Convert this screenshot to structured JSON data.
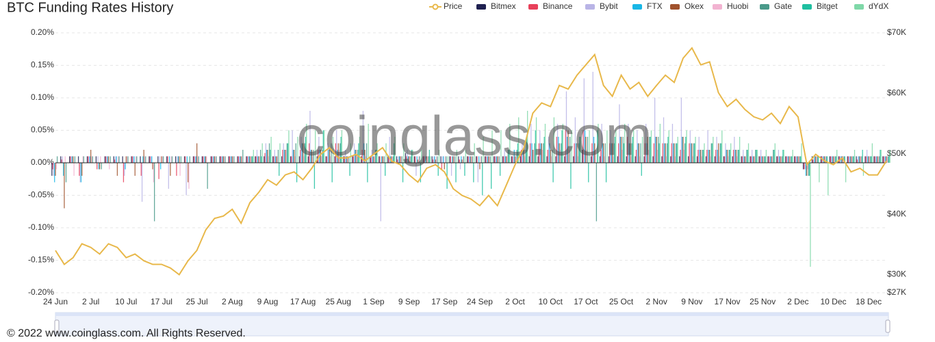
{
  "chart_data": {
    "type": "bar",
    "title": "BTC Funding Rates History",
    "watermark": "coinglass.com",
    "footer": "© 2022 www.coinglass.com. All Rights Reserved.",
    "categories": [
      "24 Jun",
      null,
      null,
      null,
      "2 Jul",
      null,
      null,
      null,
      "10 Jul",
      null,
      null,
      null,
      "17 Jul",
      null,
      null,
      null,
      "25 Jul",
      null,
      null,
      null,
      "2 Aug",
      null,
      null,
      null,
      "9 Aug",
      null,
      null,
      null,
      "17 Aug",
      null,
      null,
      null,
      "25 Aug",
      null,
      null,
      null,
      "1 Sep",
      null,
      null,
      null,
      "9 Sep",
      null,
      null,
      null,
      "17 Sep",
      null,
      null,
      null,
      "24 Sep",
      null,
      null,
      null,
      "2 Oct",
      null,
      null,
      null,
      "10 Oct",
      null,
      null,
      null,
      "17 Oct",
      null,
      null,
      null,
      "25 Oct",
      null,
      null,
      null,
      "2 Nov",
      null,
      null,
      null,
      "9 Nov",
      null,
      null,
      null,
      "17 Nov",
      null,
      null,
      null,
      "25 Nov",
      null,
      null,
      null,
      "2 Dec",
      null,
      null,
      null,
      "10 Dec",
      null,
      null,
      null,
      "18 Dec",
      null,
      null
    ],
    "ylim": [
      -0.2,
      0.2
    ],
    "yticks": [
      {
        "value": -0.2,
        "label": "-0.20%"
      },
      {
        "value": -0.15,
        "label": "-0.15%"
      },
      {
        "value": -0.1,
        "label": "-0.10%"
      },
      {
        "value": -0.05,
        "label": "-0.05%"
      },
      {
        "value": 0,
        "label": "0.00%"
      },
      {
        "value": 0.05,
        "label": "0.05%"
      },
      {
        "value": 0.1,
        "label": "0.10%"
      },
      {
        "value": 0.15,
        "label": "0.15%"
      },
      {
        "value": 0.2,
        "label": "0.20%"
      }
    ],
    "y2lim": [
      27000,
      70000
    ],
    "y2ticks": [
      {
        "value": 27000,
        "label": "$27K"
      },
      {
        "value": 30000,
        "label": "$30K"
      },
      {
        "value": 40000,
        "label": "$40K"
      },
      {
        "value": 50000,
        "label": "$50K"
      },
      {
        "value": 60000,
        "label": "$60K"
      },
      {
        "value": 70000,
        "label": "$70K"
      }
    ],
    "grid": true,
    "legend": "top-right",
    "series": [
      {
        "name": "Price",
        "color": "#e8b84a",
        "axis": "y2",
        "values": [
          34000,
          31700,
          32800,
          35100,
          34500,
          33400,
          35100,
          34500,
          32800,
          33400,
          32300,
          31700,
          31700,
          31100,
          30000,
          32300,
          34000,
          37400,
          39300,
          39700,
          40800,
          38500,
          41900,
          43600,
          45700,
          44800,
          46500,
          47000,
          45700,
          47600,
          49900,
          51000,
          49300,
          49300,
          49900,
          48800,
          49900,
          51000,
          48800,
          48200,
          46500,
          45300,
          47600,
          48200,
          47000,
          44200,
          43100,
          42500,
          41400,
          43100,
          41400,
          44800,
          48200,
          51000,
          56700,
          58400,
          57800,
          61300,
          60700,
          63000,
          64700,
          66400,
          61300,
          59500,
          63000,
          60700,
          61800,
          59500,
          61300,
          63000,
          61800,
          65800,
          67500,
          64700,
          65200,
          60100,
          57800,
          59000,
          57300,
          56100,
          55600,
          56700,
          55000,
          57800,
          56100,
          48200,
          49900,
          48800,
          48200,
          49300,
          47000,
          47600,
          46500,
          46500,
          48800
        ]
      },
      {
        "name": "Bitmex",
        "color": "#1f2150",
        "values": [
          -0.02,
          0.01,
          0.01,
          0.01,
          0.01,
          0.01,
          0.01,
          0.01,
          0.01,
          0.01,
          0.01,
          0.01,
          0.01,
          0.01,
          0.01,
          0.01,
          0.01,
          0.01,
          0.01,
          0.01,
          0.01,
          0.01,
          0.01,
          0.01,
          0.01,
          0.01,
          0.01,
          0.01,
          0.01,
          0.01,
          0.01,
          0.01,
          0.01,
          0.01,
          0.01,
          0.01,
          0.01,
          0.01,
          0.01,
          0.01,
          0.015,
          0.01,
          0.01,
          0.01,
          0.01,
          0.01,
          0.01,
          0.01,
          0.01,
          0.01,
          0.01,
          0.01,
          0.01,
          0.01,
          0.01,
          0.01,
          0.01,
          0.01,
          0.01,
          0.01,
          0.02,
          0.01,
          0.01,
          0.01,
          0.01,
          0.01,
          0.01,
          0.01,
          0.01,
          0.01,
          0.01,
          0.01,
          0.01,
          0.01,
          0.01,
          0.01,
          0.01,
          0.01,
          0.01,
          0.01,
          0.01,
          0.01,
          0.01,
          0.01,
          0.01,
          -0.01,
          0.01,
          0.01,
          0.01,
          0.01,
          0.01,
          0.01,
          0.01,
          0.01,
          0.01
        ]
      },
      {
        "name": "Binance",
        "color": "#e8405a",
        "values": [
          -0.01,
          0.005,
          0.01,
          -0.02,
          0.01,
          -0.01,
          0.01,
          0.005,
          -0.03,
          0.01,
          -0.02,
          0.01,
          -0.025,
          0.01,
          -0.02,
          0.01,
          0.01,
          0.01,
          0.01,
          0.01,
          0.01,
          0.01,
          0.01,
          0.01,
          0.015,
          0.01,
          0.02,
          0.01,
          0.02,
          0.03,
          0.02,
          0.01,
          0.03,
          0.01,
          0.01,
          0.02,
          0.01,
          0.01,
          0.01,
          0.005,
          0.01,
          0.01,
          0.01,
          0.005,
          -0.01,
          0.01,
          0.005,
          0.01,
          0.01,
          0.01,
          0.01,
          0.01,
          0.01,
          0.02,
          0.03,
          0.03,
          0.02,
          0.04,
          0.05,
          0.03,
          0.05,
          0.03,
          0.02,
          0.03,
          0.03,
          0.04,
          0.02,
          0.03,
          0.03,
          0.03,
          0.03,
          0.02,
          0.03,
          0.02,
          0.02,
          0.02,
          0.01,
          0.02,
          0.01,
          0.01,
          0.01,
          0.01,
          0.01,
          0.01,
          0.01,
          -0.01,
          0.005,
          0.01,
          0.01,
          0.01,
          0.01,
          0.005,
          0.01,
          0.01,
          0.01
        ]
      },
      {
        "name": "Bybit",
        "color": "#b9b4e6",
        "values": [
          -0.02,
          0.01,
          0.01,
          -0.03,
          0.01,
          0.01,
          0.01,
          0.01,
          -0.02,
          0.01,
          -0.06,
          0.01,
          0.01,
          -0.04,
          0.01,
          -0.05,
          0.01,
          0.01,
          0.01,
          0.01,
          0.01,
          0.01,
          0.01,
          0.02,
          0.03,
          0.02,
          0.03,
          0.05,
          0.04,
          0.08,
          0.04,
          0.03,
          0.05,
          0.02,
          0.03,
          0.08,
          0.02,
          -0.09,
          0.04,
          0.01,
          0.02,
          -0.02,
          0.01,
          0.01,
          0.01,
          -0.02,
          -0.01,
          0.01,
          -0.03,
          0.01,
          0.01,
          0.02,
          0.01,
          0.03,
          0.06,
          0.05,
          0.04,
          0.06,
          0.11,
          0.07,
          0.13,
          0.14,
          0.06,
          0.05,
          0.09,
          0.06,
          0.05,
          0.06,
          0.1,
          0.07,
          0.06,
          0.1,
          0.05,
          0.04,
          0.05,
          0.04,
          0.03,
          0.04,
          0.02,
          0.02,
          0.02,
          0.01,
          0.02,
          0.01,
          0.01,
          -0.01,
          0.01,
          0.01,
          0.01,
          0.01,
          0.01,
          0.01,
          0.02,
          0.01,
          0.01
        ]
      },
      {
        "name": "FTX",
        "color": "#18b7e6",
        "values": [
          -0.03,
          -0.02,
          0.01,
          -0.03,
          0.01,
          -0.01,
          0.01,
          0.01,
          -0.01,
          0.01,
          0.01,
          0.01,
          -0.01,
          0.01,
          0.01,
          0.01,
          0.01,
          0.01,
          0.01,
          0.01,
          0.01,
          0.01,
          0.01,
          0.01,
          0.02,
          0.01,
          0.02,
          0.02,
          0.03,
          0.02,
          0.02,
          0.02,
          0.02,
          0.01,
          0.02,
          0.03,
          0.01,
          0.01,
          0.01,
          0.01,
          0.01,
          0.01,
          0.01,
          0.01,
          0.01,
          0.01,
          0.01,
          0.01,
          0.01,
          0.01,
          0.01,
          0.01,
          0.02,
          0.02,
          0.03,
          0.03,
          0.03,
          0.04,
          0.04,
          0.03,
          0.05,
          0.04,
          0.03,
          0.03,
          0.04,
          0.03,
          0.03,
          0.03,
          0.04,
          0.03,
          0.03,
          0.04,
          0.03,
          0.02,
          0.02,
          0.02,
          0.02,
          0.02,
          0.01,
          0.01,
          0.01,
          0.01,
          0.01,
          0.01,
          0.01,
          -0.02,
          0.01,
          0.01,
          0.01,
          0.01,
          0.01,
          0.01,
          0.01,
          0.01,
          0.01
        ]
      },
      {
        "name": "Okex",
        "color": "#a0522d",
        "values": [
          -0.02,
          -0.07,
          0.01,
          -0.02,
          0.02,
          -0.01,
          0.01,
          -0.02,
          0.01,
          -0.02,
          0.02,
          -0.01,
          0.01,
          -0.02,
          0.01,
          -0.03,
          0.03,
          0.01,
          0.01,
          0.01,
          0.01,
          0.01,
          0.01,
          0.01,
          0.02,
          0.01,
          0.02,
          0.02,
          0.03,
          0.02,
          0.02,
          0.02,
          0.03,
          0.01,
          0.02,
          0.02,
          0.01,
          0.01,
          0.01,
          0.01,
          0.01,
          0.005,
          0.01,
          0.005,
          -0.01,
          0.01,
          0.005,
          0.01,
          -0.01,
          0.01,
          0.01,
          0.01,
          0.01,
          0.02,
          0.02,
          0.03,
          0.02,
          0.03,
          0.05,
          0.03,
          0.04,
          0.03,
          0.03,
          0.03,
          0.04,
          0.03,
          0.03,
          0.04,
          0.04,
          0.03,
          0.03,
          0.04,
          0.03,
          0.02,
          0.02,
          0.03,
          0.02,
          0.02,
          0.01,
          0.01,
          0.01,
          0.01,
          0.01,
          0.01,
          0.01,
          -0.02,
          0.01,
          0.01,
          0.01,
          0.01,
          0.01,
          0.01,
          0.01,
          0.01,
          0.01
        ]
      },
      {
        "name": "Huobi",
        "color": "#f2b3d1",
        "values": [
          -0.01,
          0.01,
          -0.02,
          0.01,
          0.01,
          0.01,
          -0.01,
          0.01,
          0.01,
          0.01,
          0.01,
          -0.03,
          0.01,
          0.01,
          -0.02,
          -0.04,
          0.01,
          0.01,
          0.01,
          0.01,
          0.01,
          0.01,
          0.01,
          0.01,
          0.01,
          0.01,
          0.02,
          0.01,
          0.01,
          0.01,
          0.01,
          0.01,
          0.02,
          0.01,
          0.01,
          0.01,
          0.01,
          0.01,
          0.01,
          0.01,
          0.01,
          0.01,
          0.01,
          0.01,
          0.01,
          0.01,
          0.01,
          0.01,
          0.01,
          0.01,
          0.01,
          0.01,
          0.01,
          0.01,
          0.02,
          0.02,
          0.01,
          0.02,
          0.02,
          0.01,
          0.02,
          0.02,
          0.01,
          0.01,
          0.02,
          0.01,
          0.01,
          0.02,
          0.02,
          0.01,
          0.01,
          0.02,
          0.01,
          0.01,
          0.01,
          0.01,
          0.01,
          0.01,
          0.01,
          0.01,
          0.01,
          0.01,
          0.01,
          0.01,
          0.01,
          -0.01,
          0.01,
          0.01,
          0.01,
          0.01,
          0.01,
          0.01,
          0.01,
          0.01,
          0.01
        ]
      },
      {
        "name": "Gate",
        "color": "#4a9a8a",
        "values": [
          0.01,
          -0.03,
          0.01,
          0.01,
          0.01,
          -0.01,
          0.01,
          0.01,
          0.01,
          0.01,
          0.01,
          -0.09,
          0.01,
          0.01,
          0.01,
          0.01,
          0.01,
          -0.04,
          0.01,
          0.01,
          0.01,
          0.02,
          0.01,
          0.02,
          0.03,
          0.02,
          0.03,
          0.03,
          0.03,
          0.02,
          0.02,
          0.03,
          0.03,
          0.01,
          0.02,
          0.03,
          0.02,
          0.01,
          0.01,
          0.01,
          0.01,
          0.01,
          0.01,
          0.01,
          0.01,
          0.01,
          0.01,
          0.01,
          0.01,
          0.01,
          0.01,
          0.02,
          0.02,
          0.02,
          0.03,
          0.03,
          0.02,
          0.03,
          0.04,
          0.03,
          0.04,
          -0.09,
          0.03,
          0.03,
          0.04,
          0.03,
          0.03,
          0.04,
          0.04,
          0.03,
          0.03,
          0.03,
          0.03,
          0.02,
          0.03,
          0.03,
          0.02,
          0.02,
          0.02,
          0.02,
          0.01,
          0.02,
          0.01,
          0.01,
          0.01,
          -0.02,
          0.01,
          0.01,
          0.01,
          0.01,
          0.01,
          0.01,
          0.01,
          0.01,
          0.01
        ]
      },
      {
        "name": "Bitget",
        "color": "#1fbfa0",
        "values": [
          null,
          null,
          null,
          null,
          null,
          null,
          null,
          null,
          null,
          null,
          null,
          null,
          null,
          null,
          null,
          null,
          null,
          null,
          null,
          null,
          null,
          null,
          0.01,
          0.01,
          0.02,
          -0.02,
          0.03,
          -0.03,
          0.04,
          -0.04,
          0.05,
          -0.03,
          0.04,
          -0.02,
          0.03,
          -0.03,
          0.02,
          -0.02,
          0.03,
          -0.03,
          0.02,
          -0.03,
          0.02,
          -0.02,
          -0.04,
          -0.03,
          -0.02,
          -0.03,
          -0.05,
          -0.04,
          -0.02,
          0.02,
          0.03,
          0.04,
          0.05,
          0.04,
          -0.03,
          0.05,
          -0.04,
          0.04,
          -0.03,
          0.05,
          -0.03,
          0.04,
          0.03,
          0.04,
          -0.02,
          0.04,
          0.03,
          0.04,
          0.03,
          0.04,
          0.03,
          0.02,
          0.03,
          0.03,
          0.02,
          0.02,
          0.02,
          0.02,
          0.01,
          0.02,
          0.02,
          0.01,
          0.01,
          -0.02,
          0.01,
          0.01,
          0.01,
          0.01,
          0.01,
          0.02,
          0.01,
          0.02,
          0.01
        ]
      },
      {
        "name": "dYdX",
        "color": "#7fd8a8",
        "values": [
          null,
          null,
          null,
          null,
          null,
          null,
          null,
          null,
          null,
          null,
          null,
          null,
          null,
          null,
          null,
          null,
          null,
          null,
          null,
          null,
          null,
          null,
          0.02,
          0.03,
          0.04,
          0.03,
          0.05,
          0.04,
          0.06,
          0.05,
          0.05,
          0.04,
          0.05,
          0.03,
          0.04,
          0.06,
          0.03,
          0.03,
          0.04,
          0.03,
          0.02,
          0.02,
          0.01,
          0.02,
          0.01,
          0.02,
          0.02,
          0.03,
          0.04,
          0.05,
          0.05,
          0.06,
          0.07,
          0.08,
          0.07,
          0.06,
          0.07,
          0.06,
          0.05,
          0.04,
          0.05,
          0.06,
          0.05,
          0.05,
          0.06,
          0.05,
          0.04,
          0.05,
          0.06,
          0.05,
          0.04,
          0.05,
          0.04,
          0.03,
          0.04,
          0.05,
          0.03,
          0.04,
          0.03,
          0.02,
          0.02,
          0.03,
          0.02,
          0.02,
          0.03,
          -0.16,
          -0.03,
          -0.05,
          0.02,
          -0.03,
          0.02,
          -0.02,
          0.03,
          0.02,
          0.02
        ]
      }
    ]
  }
}
